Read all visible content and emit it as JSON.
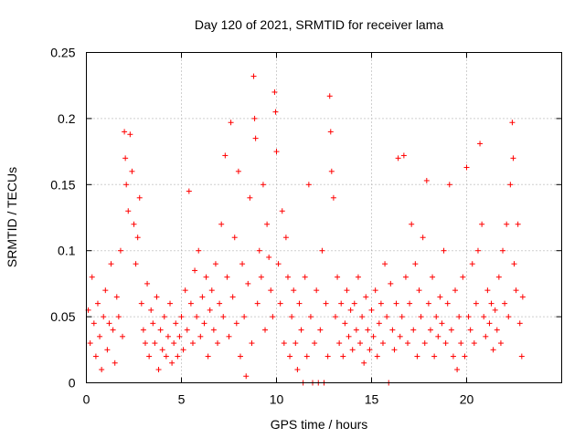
{
  "chart_data": {
    "type": "scatter",
    "title": "Day 120 of 2021, SRMTID for receiver lama",
    "xlabel": "GPS time / hours",
    "ylabel": "SRMTID / TECUs",
    "xlim": [
      0,
      25
    ],
    "ylim": [
      0,
      0.25
    ],
    "x_ticks": [
      0,
      5,
      10,
      15,
      20
    ],
    "x_tick_labels": [
      "0",
      "5",
      "10",
      "15",
      "20"
    ],
    "y_ticks": [
      0,
      0.05,
      0.1,
      0.15,
      0.2,
      0.25
    ],
    "y_tick_labels": [
      "0",
      "0.05",
      "0.1",
      "0.15",
      "0.2",
      "0.25"
    ],
    "grid": true,
    "marker": "+",
    "color": "#ff0000",
    "series": [
      {
        "name": "SRMTID",
        "points": [
          [
            0.1,
            0.055
          ],
          [
            0.2,
            0.03
          ],
          [
            0.3,
            0.08
          ],
          [
            0.4,
            0.045
          ],
          [
            0.5,
            0.02
          ],
          [
            0.6,
            0.06
          ],
          [
            0.7,
            0.035
          ],
          [
            0.8,
            0.01
          ],
          [
            0.9,
            0.05
          ],
          [
            1.0,
            0.07
          ],
          [
            1.1,
            0.025
          ],
          [
            1.2,
            0.045
          ],
          [
            1.3,
            0.09
          ],
          [
            1.4,
            0.04
          ],
          [
            1.5,
            0.015
          ],
          [
            1.6,
            0.065
          ],
          [
            1.7,
            0.05
          ],
          [
            1.8,
            0.1
          ],
          [
            1.9,
            0.035
          ],
          [
            2.0,
            0.19
          ],
          [
            2.05,
            0.17
          ],
          [
            2.1,
            0.15
          ],
          [
            2.2,
            0.13
          ],
          [
            2.3,
            0.188
          ],
          [
            2.4,
            0.16
          ],
          [
            2.5,
            0.12
          ],
          [
            2.6,
            0.09
          ],
          [
            2.7,
            0.11
          ],
          [
            2.8,
            0.14
          ],
          [
            2.9,
            0.06
          ],
          [
            3.0,
            0.04
          ],
          [
            3.1,
            0.03
          ],
          [
            3.2,
            0.075
          ],
          [
            3.3,
            0.02
          ],
          [
            3.4,
            0.055
          ],
          [
            3.5,
            0.045
          ],
          [
            3.6,
            0.03
          ],
          [
            3.7,
            0.065
          ],
          [
            3.8,
            0.01
          ],
          [
            3.9,
            0.04
          ],
          [
            4.0,
            0.025
          ],
          [
            4.1,
            0.05
          ],
          [
            4.2,
            0.02
          ],
          [
            4.3,
            0.035
          ],
          [
            4.4,
            0.06
          ],
          [
            4.5,
            0.015
          ],
          [
            4.6,
            0.03
          ],
          [
            4.7,
            0.045
          ],
          [
            4.8,
            0.02
          ],
          [
            4.9,
            0.035
          ],
          [
            5.0,
            0.05
          ],
          [
            5.1,
            0.025
          ],
          [
            5.2,
            0.07
          ],
          [
            5.3,
            0.04
          ],
          [
            5.4,
            0.145
          ],
          [
            5.5,
            0.06
          ],
          [
            5.6,
            0.03
          ],
          [
            5.7,
            0.085
          ],
          [
            5.8,
            0.05
          ],
          [
            5.9,
            0.1
          ],
          [
            6.0,
            0.035
          ],
          [
            6.1,
            0.065
          ],
          [
            6.2,
            0.045
          ],
          [
            6.3,
            0.08
          ],
          [
            6.4,
            0.02
          ],
          [
            6.5,
            0.055
          ],
          [
            6.6,
            0.07
          ],
          [
            6.7,
            0.04
          ],
          [
            6.8,
            0.09
          ],
          [
            6.9,
            0.03
          ],
          [
            7.0,
            0.06
          ],
          [
            7.1,
            0.12
          ],
          [
            7.2,
            0.05
          ],
          [
            7.3,
            0.172
          ],
          [
            7.4,
            0.08
          ],
          [
            7.5,
            0.035
          ],
          [
            7.6,
            0.197
          ],
          [
            7.7,
            0.065
          ],
          [
            7.8,
            0.11
          ],
          [
            7.9,
            0.045
          ],
          [
            8.0,
            0.16
          ],
          [
            8.1,
            0.02
          ],
          [
            8.2,
            0.09
          ],
          [
            8.3,
            0.05
          ],
          [
            8.4,
            0.005
          ],
          [
            8.5,
            0.075
          ],
          [
            8.6,
            0.14
          ],
          [
            8.7,
            0.03
          ],
          [
            8.8,
            0.232
          ],
          [
            8.85,
            0.2
          ],
          [
            8.9,
            0.185
          ],
          [
            9.0,
            0.06
          ],
          [
            9.1,
            0.1
          ],
          [
            9.2,
            0.08
          ],
          [
            9.3,
            0.15
          ],
          [
            9.4,
            0.04
          ],
          [
            9.5,
            0.12
          ],
          [
            9.6,
            0.095
          ],
          [
            9.7,
            0.07
          ],
          [
            9.8,
            0.05
          ],
          [
            9.9,
            0.22
          ],
          [
            9.95,
            0.205
          ],
          [
            10.0,
            0.175
          ],
          [
            10.1,
            0.09
          ],
          [
            10.2,
            0.06
          ],
          [
            10.3,
            0.13
          ],
          [
            10.4,
            0.03
          ],
          [
            10.5,
            0.11
          ],
          [
            10.6,
            0.08
          ],
          [
            10.7,
            0.02
          ],
          [
            10.8,
            0.05
          ],
          [
            10.9,
            0.07
          ],
          [
            11.0,
            0.03
          ],
          [
            11.1,
            0.01
          ],
          [
            11.2,
            0.06
          ],
          [
            11.3,
            0.04
          ],
          [
            11.4,
            0.0
          ],
          [
            11.5,
            0.08
          ],
          [
            11.6,
            0.02
          ],
          [
            11.7,
            0.15
          ],
          [
            11.8,
            0.05
          ],
          [
            11.9,
            0.0
          ],
          [
            12.0,
            0.03
          ],
          [
            12.1,
            0.07
          ],
          [
            12.2,
            0.0
          ],
          [
            12.3,
            0.04
          ],
          [
            12.4,
            0.1
          ],
          [
            12.5,
            0.0
          ],
          [
            12.6,
            0.06
          ],
          [
            12.7,
            0.02
          ],
          [
            12.8,
            0.217
          ],
          [
            12.85,
            0.19
          ],
          [
            12.9,
            0.16
          ],
          [
            13.0,
            0.14
          ],
          [
            13.1,
            0.05
          ],
          [
            13.2,
            0.08
          ],
          [
            13.3,
            0.03
          ],
          [
            13.4,
            0.06
          ],
          [
            13.5,
            0.02
          ],
          [
            13.6,
            0.045
          ],
          [
            13.7,
            0.07
          ],
          [
            13.8,
            0.035
          ],
          [
            13.9,
            0.055
          ],
          [
            14.0,
            0.025
          ],
          [
            14.1,
            0.06
          ],
          [
            14.2,
            0.04
          ],
          [
            14.3,
            0.08
          ],
          [
            14.4,
            0.03
          ],
          [
            14.5,
            0.05
          ],
          [
            14.6,
            0.015
          ],
          [
            14.7,
            0.065
          ],
          [
            14.8,
            0.04
          ],
          [
            14.9,
            0.025
          ],
          [
            15.0,
            0.055
          ],
          [
            15.1,
            0.035
          ],
          [
            15.2,
            0.07
          ],
          [
            15.3,
            0.02
          ],
          [
            15.4,
            0.045
          ],
          [
            15.5,
            0.06
          ],
          [
            15.6,
            0.03
          ],
          [
            15.7,
            0.09
          ],
          [
            15.8,
            0.05
          ],
          [
            15.9,
            0.0
          ],
          [
            16.0,
            0.075
          ],
          [
            16.1,
            0.04
          ],
          [
            16.2,
            0.025
          ],
          [
            16.3,
            0.06
          ],
          [
            16.4,
            0.17
          ],
          [
            16.5,
            0.035
          ],
          [
            16.6,
            0.05
          ],
          [
            16.7,
            0.172
          ],
          [
            16.8,
            0.08
          ],
          [
            16.9,
            0.03
          ],
          [
            17.0,
            0.06
          ],
          [
            17.1,
            0.12
          ],
          [
            17.2,
            0.04
          ],
          [
            17.3,
            0.09
          ],
          [
            17.4,
            0.02
          ],
          [
            17.5,
            0.07
          ],
          [
            17.6,
            0.05
          ],
          [
            17.7,
            0.11
          ],
          [
            17.8,
            0.03
          ],
          [
            17.9,
            0.153
          ],
          [
            18.0,
            0.06
          ],
          [
            18.1,
            0.04
          ],
          [
            18.2,
            0.08
          ],
          [
            18.3,
            0.02
          ],
          [
            18.4,
            0.05
          ],
          [
            18.5,
            0.035
          ],
          [
            18.6,
            0.065
          ],
          [
            18.7,
            0.045
          ],
          [
            18.8,
            0.1
          ],
          [
            18.9,
            0.03
          ],
          [
            19.0,
            0.06
          ],
          [
            19.1,
            0.15
          ],
          [
            19.2,
            0.04
          ],
          [
            19.3,
            0.02
          ],
          [
            19.4,
            0.07
          ],
          [
            19.5,
            0.01
          ],
          [
            19.6,
            0.05
          ],
          [
            19.7,
            0.03
          ],
          [
            19.8,
            0.08
          ],
          [
            19.9,
            0.02
          ],
          [
            20.0,
            0.163
          ],
          [
            20.1,
            0.05
          ],
          [
            20.2,
            0.04
          ],
          [
            20.3,
            0.09
          ],
          [
            20.4,
            0.03
          ],
          [
            20.5,
            0.06
          ],
          [
            20.6,
            0.1
          ],
          [
            20.7,
            0.181
          ],
          [
            20.8,
            0.12
          ],
          [
            20.9,
            0.05
          ],
          [
            21.0,
            0.035
          ],
          [
            21.1,
            0.07
          ],
          [
            21.2,
            0.045
          ],
          [
            21.3,
            0.06
          ],
          [
            21.4,
            0.025
          ],
          [
            21.5,
            0.055
          ],
          [
            21.6,
            0.04
          ],
          [
            21.7,
            0.08
          ],
          [
            21.8,
            0.03
          ],
          [
            21.9,
            0.1
          ],
          [
            22.0,
            0.06
          ],
          [
            22.1,
            0.12
          ],
          [
            22.2,
            0.05
          ],
          [
            22.3,
            0.15
          ],
          [
            22.4,
            0.197
          ],
          [
            22.45,
            0.17
          ],
          [
            22.5,
            0.09
          ],
          [
            22.6,
            0.07
          ],
          [
            22.7,
            0.12
          ],
          [
            22.8,
            0.045
          ],
          [
            22.9,
            0.02
          ],
          [
            22.95,
            0.065
          ]
        ]
      }
    ]
  }
}
